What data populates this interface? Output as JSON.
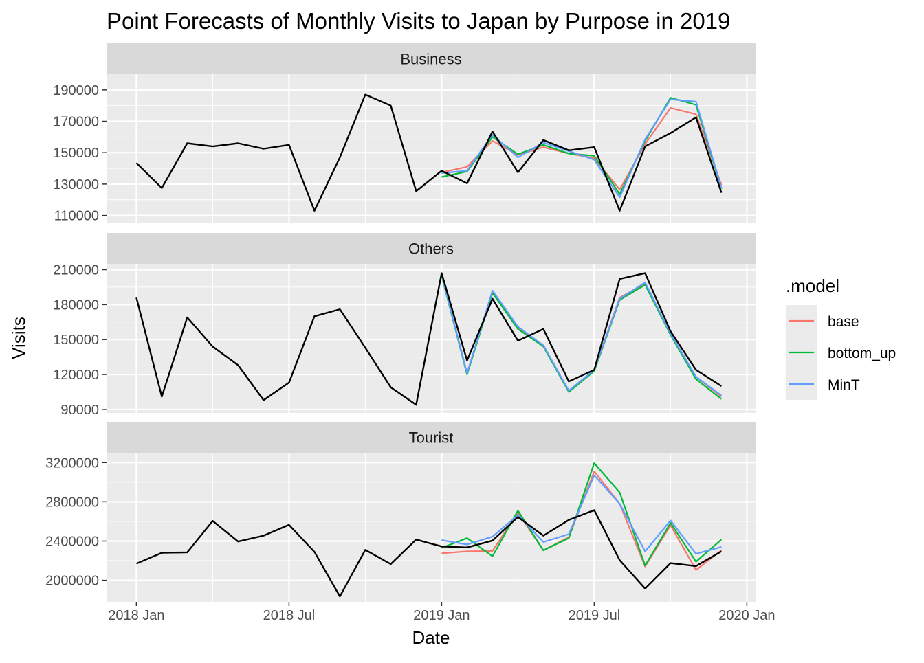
{
  "chart_data": {
    "type": "line",
    "title": "Point Forecasts of Monthly Visits to Japan by Purpose in 2019",
    "xlabel": "Date",
    "ylabel": "Visits",
    "x_ticks": [
      "2018 Jan",
      "2018 Jul",
      "2019 Jan",
      "2019 Jul",
      "2020 Jan"
    ],
    "grid": true,
    "legend": {
      "title": ".model",
      "placement": "right",
      "entries": [
        {
          "name": "base",
          "color": "#F8766D"
        },
        {
          "name": "bottom_up",
          "color": "#00BA38"
        },
        {
          "name": "MinT",
          "color": "#619CFF"
        }
      ]
    },
    "actual_color": "#000000",
    "panels": [
      {
        "name": "Business",
        "ylim": [
          105000,
          200000
        ],
        "y_ticks": [
          110000,
          130000,
          150000,
          170000,
          190000
        ],
        "actual": {
          "x": [
            "2018-01",
            "2018-02",
            "2018-03",
            "2018-04",
            "2018-05",
            "2018-06",
            "2018-07",
            "2018-08",
            "2018-09",
            "2018-10",
            "2018-11",
            "2018-12",
            "2019-01",
            "2019-02",
            "2019-03",
            "2019-04",
            "2019-05",
            "2019-06",
            "2019-07",
            "2019-08",
            "2019-09",
            "2019-10",
            "2019-11",
            "2019-12"
          ],
          "values": [
            143500,
            127500,
            156000,
            154000,
            156000,
            152500,
            155000,
            113000,
            147000,
            187000,
            180000,
            125500,
            138500,
            130500,
            163500,
            137500,
            158000,
            151500,
            153500,
            113000,
            154000,
            162500,
            172500,
            124500
          ]
        },
        "series": [
          {
            "name": "base",
            "x": [
              "2019-01",
              "2019-02",
              "2019-03",
              "2019-04",
              "2019-05",
              "2019-06",
              "2019-07",
              "2019-08",
              "2019-09",
              "2019-10",
              "2019-11",
              "2019-12"
            ],
            "values": [
              137500,
              141000,
              157500,
              148500,
              153500,
              149500,
              146500,
              126500,
              155500,
              178500,
              174500,
              129500
            ]
          },
          {
            "name": "bottom_up",
            "x": [
              "2019-01",
              "2019-02",
              "2019-03",
              "2019-04",
              "2019-05",
              "2019-06",
              "2019-07",
              "2019-08",
              "2019-09",
              "2019-10",
              "2019-11",
              "2019-12"
            ],
            "values": [
              134500,
              138000,
              160000,
              149000,
              155000,
              149500,
              148000,
              123500,
              157500,
              185000,
              180500,
              127000
            ]
          },
          {
            "name": "MinT",
            "x": [
              "2019-01",
              "2019-02",
              "2019-03",
              "2019-04",
              "2019-05",
              "2019-06",
              "2019-07",
              "2019-08",
              "2019-09",
              "2019-10",
              "2019-11",
              "2019-12"
            ],
            "values": [
              137000,
              138500,
              161500,
              147000,
              156500,
              151000,
              145500,
              121500,
              158500,
              184000,
              182500,
              127500
            ]
          }
        ]
      },
      {
        "name": "Others",
        "ylim": [
          87000,
          215000
        ],
        "y_ticks": [
          90000,
          120000,
          150000,
          180000,
          210000
        ],
        "actual": {
          "x": [
            "2018-01",
            "2018-02",
            "2018-03",
            "2018-04",
            "2018-05",
            "2018-06",
            "2018-07",
            "2018-08",
            "2018-09",
            "2018-10",
            "2018-11",
            "2018-12",
            "2019-01",
            "2019-02",
            "2019-03",
            "2019-04",
            "2019-05",
            "2019-06",
            "2019-07",
            "2019-08",
            "2019-09",
            "2019-10",
            "2019-11",
            "2019-12"
          ],
          "values": [
            186000,
            101000,
            169000,
            144000,
            128000,
            98000,
            113000,
            170000,
            176000,
            143000,
            109000,
            94000,
            207000,
            132000,
            185000,
            149000,
            159000,
            114000,
            124000,
            202000,
            207000,
            157000,
            124000,
            110000
          ]
        },
        "series": [
          {
            "name": "base",
            "x": [
              "2019-01",
              "2019-02",
              "2019-03",
              "2019-04",
              "2019-05",
              "2019-06",
              "2019-07",
              "2019-08",
              "2019-09",
              "2019-10",
              "2019-11",
              "2019-12"
            ],
            "values": [
              206000,
              121000,
              191000,
              160000,
              145000,
              106000,
              124000,
              186000,
              198000,
              155000,
              118000,
              101000
            ]
          },
          {
            "name": "bottom_up",
            "x": [
              "2019-01",
              "2019-02",
              "2019-03",
              "2019-04",
              "2019-05",
              "2019-06",
              "2019-07",
              "2019-08",
              "2019-09",
              "2019-10",
              "2019-11",
              "2019-12"
            ],
            "values": [
              205000,
              120000,
              190000,
              159000,
              144000,
              105000,
              123000,
              184000,
              197000,
              154000,
              116000,
              99000
            ]
          },
          {
            "name": "MinT",
            "x": [
              "2019-01",
              "2019-02",
              "2019-03",
              "2019-04",
              "2019-05",
              "2019-06",
              "2019-07",
              "2019-08",
              "2019-09",
              "2019-10",
              "2019-11",
              "2019-12"
            ],
            "values": [
              206000,
              121000,
              192000,
              161000,
              145000,
              106000,
              124000,
              185000,
              199000,
              155000,
              118000,
              102000
            ]
          }
        ]
      },
      {
        "name": "Tourist",
        "ylim": [
          1780000,
          3300000
        ],
        "y_ticks": [
          2000000,
          2400000,
          2800000,
          3200000
        ],
        "actual": {
          "x": [
            "2018-01",
            "2018-02",
            "2018-03",
            "2018-04",
            "2018-05",
            "2018-06",
            "2018-07",
            "2018-08",
            "2018-09",
            "2018-10",
            "2018-11",
            "2018-12",
            "2019-01",
            "2019-02",
            "2019-03",
            "2019-04",
            "2019-05",
            "2019-06",
            "2019-07",
            "2019-08",
            "2019-09",
            "2019-10",
            "2019-11",
            "2019-12"
          ],
          "values": [
            2170000,
            2280000,
            2285000,
            2605000,
            2395000,
            2455000,
            2565000,
            2290000,
            1835000,
            2310000,
            2165000,
            2415000,
            2345000,
            2335000,
            2405000,
            2645000,
            2455000,
            2615000,
            2715000,
            2205000,
            1915000,
            2175000,
            2145000,
            2295000
          ]
        },
        "series": [
          {
            "name": "base",
            "x": [
              "2019-01",
              "2019-02",
              "2019-03",
              "2019-04",
              "2019-05",
              "2019-06",
              "2019-07",
              "2019-08",
              "2019-09",
              "2019-10",
              "2019-11",
              "2019-12"
            ],
            "values": [
              2275000,
              2295000,
              2300000,
              2690000,
              2305000,
              2440000,
              3110000,
              2780000,
              2140000,
              2560000,
              2105000,
              2305000
            ]
          },
          {
            "name": "bottom_up",
            "x": [
              "2019-01",
              "2019-02",
              "2019-03",
              "2019-04",
              "2019-05",
              "2019-06",
              "2019-07",
              "2019-08",
              "2019-09",
              "2019-10",
              "2019-11",
              "2019-12"
            ],
            "values": [
              2330000,
              2430000,
              2245000,
              2710000,
              2305000,
              2430000,
              3195000,
              2895000,
              2150000,
              2585000,
              2190000,
              2415000
            ]
          },
          {
            "name": "MinT",
            "x": [
              "2019-01",
              "2019-02",
              "2019-03",
              "2019-04",
              "2019-05",
              "2019-06",
              "2019-07",
              "2019-08",
              "2019-09",
              "2019-10",
              "2019-11",
              "2019-12"
            ],
            "values": [
              2410000,
              2365000,
              2445000,
              2665000,
              2390000,
              2470000,
              3070000,
              2780000,
              2295000,
              2610000,
              2270000,
              2340000
            ]
          }
        ]
      }
    ]
  }
}
